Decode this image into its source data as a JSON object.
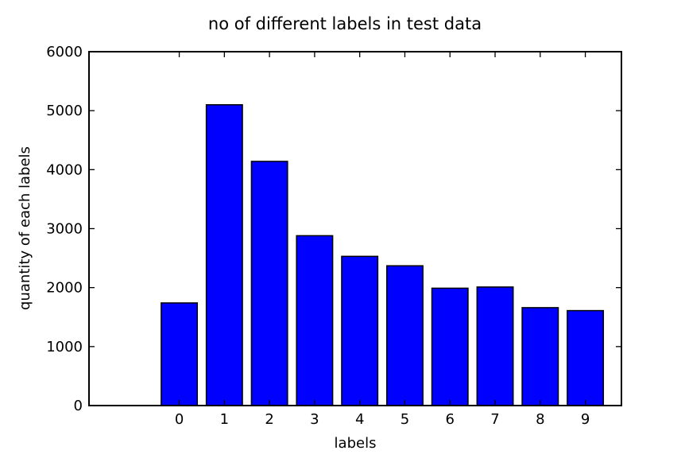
{
  "chart_data": {
    "type": "bar",
    "title": "no of different labels in test data",
    "xlabel": "labels",
    "ylabel": "quantity of each labels",
    "categories": [
      "0",
      "1",
      "2",
      "3",
      "4",
      "5",
      "6",
      "7",
      "8",
      "9"
    ],
    "x": [
      0,
      1,
      2,
      3,
      4,
      5,
      6,
      7,
      8,
      9
    ],
    "values": [
      1740,
      5100,
      4140,
      2880,
      2530,
      2370,
      1990,
      2010,
      1660,
      1610
    ],
    "xlim": [
      -2,
      9.8
    ],
    "ylim": [
      0,
      6000
    ],
    "yticks": [
      "0",
      "1000",
      "2000",
      "3000",
      "4000",
      "5000",
      "6000"
    ],
    "grid": false,
    "legend": "none",
    "bar_color": "#0000ff"
  }
}
